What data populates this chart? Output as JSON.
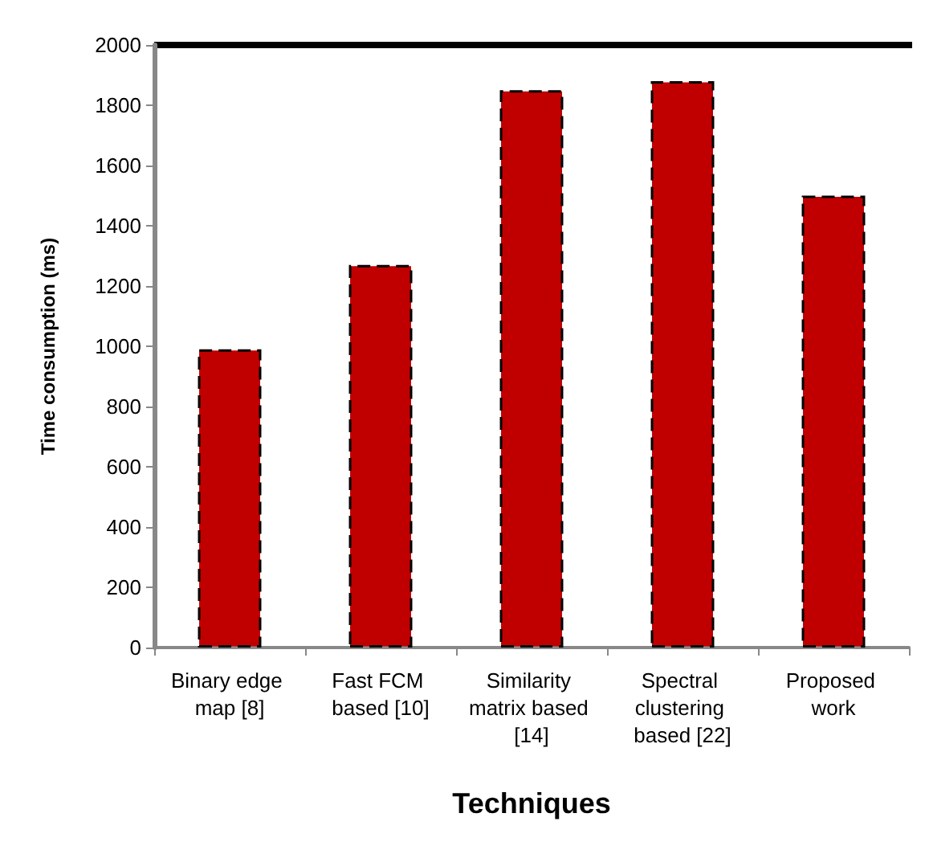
{
  "chart_data": {
    "type": "bar",
    "xlabel": "Techniques",
    "ylabel": "Time consumption (ms)",
    "categories": [
      "Binary edge map [8]",
      "Fast FCM based [10]",
      "Similarity matrix based [14]",
      "Spectral clustering based [22]",
      "Proposed work"
    ],
    "values": [
      990,
      1270,
      1850,
      1880,
      1500
    ],
    "color": "#c00000",
    "ylim": [
      0,
      2000
    ],
    "yticks": [
      0,
      200,
      400,
      600,
      800,
      1000,
      1200,
      1400,
      1600,
      1800,
      2000
    ],
    "grid": false
  }
}
